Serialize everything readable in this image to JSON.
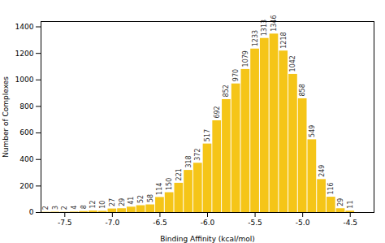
{
  "chart_data": {
    "type": "histogram",
    "xlabel": "Binding Affinity (kcal/mol)",
    "ylabel": "Number of Complexes",
    "bins": [
      -7.75,
      -7.65,
      -7.55,
      -7.45,
      -7.35,
      -7.25,
      -7.15,
      -7.05,
      -6.95,
      -6.85,
      -6.75,
      -6.65,
      -6.55,
      -6.45,
      -6.35,
      -6.25,
      -6.15,
      -6.05,
      -5.95,
      -5.85,
      -5.75,
      -5.65,
      -5.55,
      -5.45,
      -5.35,
      -5.25,
      -5.15,
      -5.05,
      -4.95,
      -4.85,
      -4.75,
      -4.65,
      -4.55,
      -4.45
    ],
    "values": [
      2,
      3,
      2,
      4,
      8,
      12,
      10,
      27,
      29,
      41,
      52,
      58,
      114,
      150,
      221,
      318,
      372,
      517,
      692,
      852,
      970,
      1079,
      1233,
      1313,
      1346,
      1218,
      1042,
      858,
      549,
      249,
      116,
      29,
      11
    ],
    "color": "#F5C518",
    "xlim": [
      -7.75,
      -4.25
    ],
    "ylim": [
      0,
      1440
    ],
    "xticks": [
      {
        "value": -7.5,
        "label": "-7.5"
      },
      {
        "value": -7,
        "label": "-7.0"
      },
      {
        "value": -6.5,
        "label": "-6.5"
      },
      {
        "value": -6,
        "label": "-6.0"
      },
      {
        "value": -5.5,
        "label": "-5.5"
      },
      {
        "value": -5,
        "label": "-5.0"
      },
      {
        "value": -4.5,
        "label": "-4.5"
      }
    ],
    "yticks": [
      0,
      200,
      400,
      600,
      800,
      1000,
      1200,
      1400
    ],
    "data_labels": true,
    "grid": false
  }
}
